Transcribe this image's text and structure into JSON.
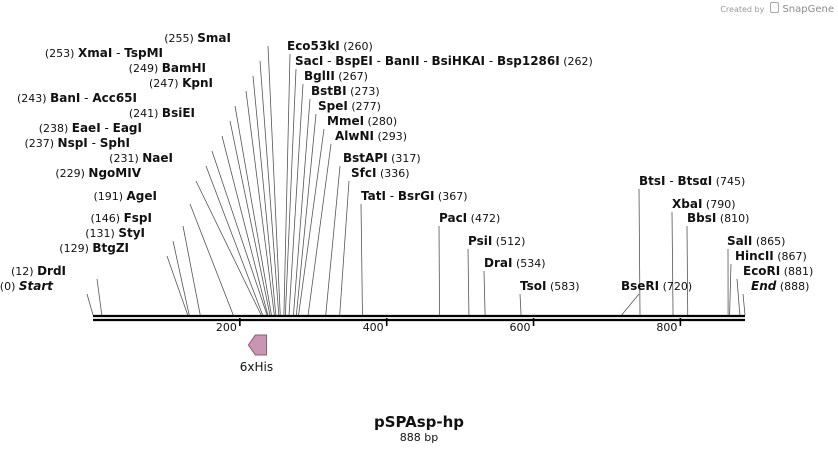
{
  "credit": {
    "prefix": "Created by",
    "brand": "SnapGene",
    "logo_icon": "snapgene-logo-icon"
  },
  "plasmid": {
    "name": "pSPAsp-hp",
    "size_label": "888 bp",
    "length_bp": 888
  },
  "colors": {
    "feature_fill": "#c996b1",
    "feature_stroke": "#8e5a78",
    "line": "#000000",
    "leader": "#555555"
  },
  "axis": {
    "ticks": [
      {
        "bp": 200,
        "label": "200"
      },
      {
        "bp": 400,
        "label": "400"
      },
      {
        "bp": 600,
        "label": "600"
      },
      {
        "bp": 800,
        "label": "800"
      }
    ]
  },
  "features": [
    {
      "name": "6xHis",
      "start_bp": 198,
      "end_bp": 220,
      "direction": "reverse",
      "icon": "arrow-left-icon"
    }
  ],
  "sites": [
    {
      "names": [
        "SmaI"
      ],
      "pos": "(255)",
      "bp": 255,
      "label_side": "left"
    },
    {
      "names": [
        "XmaI",
        "TspMI"
      ],
      "pos": "(253)",
      "bp": 253,
      "label_side": "left"
    },
    {
      "names": [
        "BamHI"
      ],
      "pos": "(249)",
      "bp": 249,
      "label_side": "left"
    },
    {
      "names": [
        "KpnI"
      ],
      "pos": "(247)",
      "bp": 247,
      "label_side": "left"
    },
    {
      "names": [
        "BanI",
        "Acc65I"
      ],
      "pos": "(243)",
      "bp": 243,
      "label_side": "left"
    },
    {
      "names": [
        "BsiEI"
      ],
      "pos": "(241)",
      "bp": 241,
      "label_side": "left"
    },
    {
      "names": [
        "EaeI",
        "EagI"
      ],
      "pos": "(238)",
      "bp": 238,
      "label_side": "left"
    },
    {
      "names": [
        "NspI",
        "SphI"
      ],
      "pos": "(237)",
      "bp": 237,
      "label_side": "left"
    },
    {
      "names": [
        "NaeI"
      ],
      "pos": "(231)",
      "bp": 231,
      "label_side": "left"
    },
    {
      "names": [
        "NgoMIV"
      ],
      "pos": "(229)",
      "bp": 229,
      "label_side": "left"
    },
    {
      "names": [
        "AgeI"
      ],
      "pos": "(191)",
      "bp": 191,
      "label_side": "left"
    },
    {
      "names": [
        "FspI"
      ],
      "pos": "(146)",
      "bp": 146,
      "label_side": "left"
    },
    {
      "names": [
        "StyI"
      ],
      "pos": "(131)",
      "bp": 131,
      "label_side": "left"
    },
    {
      "names": [
        "BtgZI"
      ],
      "pos": "(129)",
      "bp": 129,
      "label_side": "left"
    },
    {
      "names": [
        "DrdI"
      ],
      "pos": "(12)",
      "bp": 12,
      "label_side": "left"
    },
    {
      "names": [
        "Start"
      ],
      "pos": "(0)",
      "bp": 0,
      "label_side": "left",
      "marker": true
    },
    {
      "names": [
        "Eco53kI"
      ],
      "pos": "(260)",
      "bp": 260,
      "label_side": "right"
    },
    {
      "names": [
        "SacI",
        "BspEI",
        "BanII",
        "BsiHKAI",
        "Bsp1286I"
      ],
      "pos": "(262)",
      "bp": 262,
      "label_side": "right"
    },
    {
      "names": [
        "BglII"
      ],
      "pos": "(267)",
      "bp": 267,
      "label_side": "right"
    },
    {
      "names": [
        "BstBI"
      ],
      "pos": "(273)",
      "bp": 273,
      "label_side": "right"
    },
    {
      "names": [
        "SpeI"
      ],
      "pos": "(277)",
      "bp": 277,
      "label_side": "right"
    },
    {
      "names": [
        "MmeI"
      ],
      "pos": "(280)",
      "bp": 280,
      "label_side": "right"
    },
    {
      "names": [
        "AlwNI"
      ],
      "pos": "(293)",
      "bp": 293,
      "label_side": "right"
    },
    {
      "names": [
        "BstAPI"
      ],
      "pos": "(317)",
      "bp": 317,
      "label_side": "right"
    },
    {
      "names": [
        "SfcI"
      ],
      "pos": "(336)",
      "bp": 336,
      "label_side": "right"
    },
    {
      "names": [
        "TatI",
        "BsrGI"
      ],
      "pos": "(367)",
      "bp": 367,
      "label_side": "right"
    },
    {
      "names": [
        "PacI"
      ],
      "pos": "(472)",
      "bp": 472,
      "label_side": "right"
    },
    {
      "names": [
        "PsiI"
      ],
      "pos": "(512)",
      "bp": 512,
      "label_side": "right"
    },
    {
      "names": [
        "DraI"
      ],
      "pos": "(534)",
      "bp": 534,
      "label_side": "right"
    },
    {
      "names": [
        "TsoI"
      ],
      "pos": "(583)",
      "bp": 583,
      "label_side": "right"
    },
    {
      "names": [
        "BtsI",
        "BtsαI"
      ],
      "pos": "(745)",
      "bp": 745,
      "label_side": "right"
    },
    {
      "names": [
        "XbaI"
      ],
      "pos": "(790)",
      "bp": 790,
      "label_side": "right"
    },
    {
      "names": [
        "BbsI"
      ],
      "pos": "(810)",
      "bp": 810,
      "label_side": "right"
    },
    {
      "names": [
        "BseRI"
      ],
      "pos": "(720)",
      "bp": 720,
      "label_side": "right"
    },
    {
      "names": [
        "SalI"
      ],
      "pos": "(865)",
      "bp": 865,
      "label_side": "right"
    },
    {
      "names": [
        "HincII"
      ],
      "pos": "(867)",
      "bp": 867,
      "label_side": "right"
    },
    {
      "names": [
        "EcoRI"
      ],
      "pos": "(881)",
      "bp": 881,
      "label_side": "right"
    },
    {
      "names": [
        "End"
      ],
      "pos": "(888)",
      "bp": 888,
      "label_side": "right",
      "marker": true
    }
  ]
}
